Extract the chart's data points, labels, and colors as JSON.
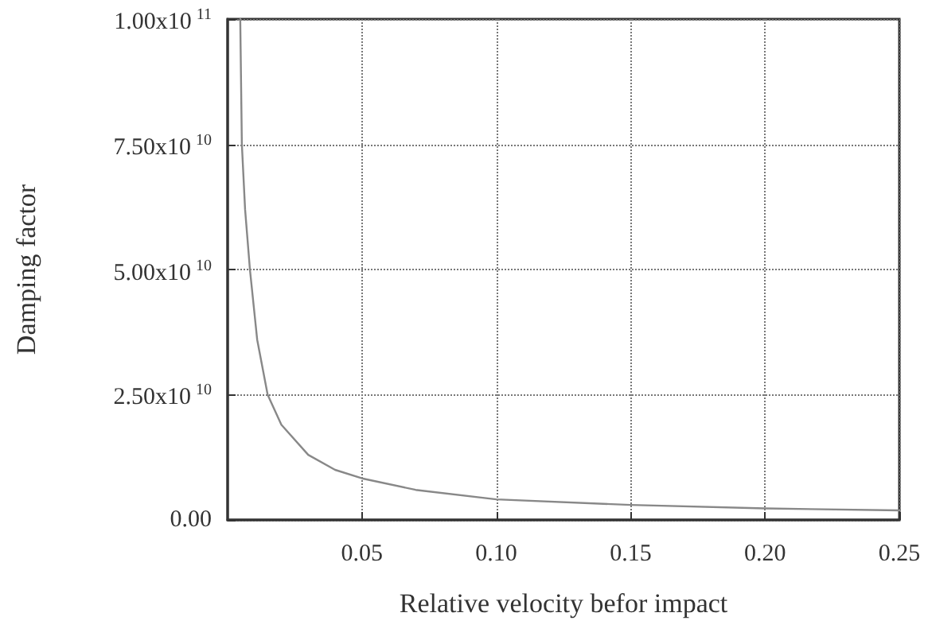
{
  "chart_data": {
    "type": "line",
    "xlabel": "Relative velocity befor impact",
    "ylabel": "Damping factor",
    "x": [
      0.0047,
      0.0053,
      0.0065,
      0.0083,
      0.011,
      0.0149,
      0.02,
      0.03,
      0.04,
      0.05,
      0.07,
      0.1,
      0.15,
      0.2,
      0.25
    ],
    "series": [
      {
        "color": "#888888",
        "values": [
          100000000000.0,
          75000000000.0,
          62000000000.0,
          50000000000.0,
          36000000000.0,
          25000000000.0,
          19000000000.0,
          13000000000.0,
          10000000000.0,
          8300000000.0,
          6000000000.0,
          4100000000.0,
          3000000000.0,
          2300000000.0,
          1900000000.0
        ]
      }
    ],
    "xlim": [
      0,
      0.25
    ],
    "xticks": [
      {
        "value": 0.05,
        "label": "0.05"
      },
      {
        "value": 0.1,
        "label": "0.10"
      },
      {
        "value": 0.15,
        "label": "0.15"
      },
      {
        "value": 0.2,
        "label": "0.20"
      },
      {
        "value": 0.25,
        "label": "0.25"
      }
    ],
    "ylim": [
      0,
      100000000000.0
    ],
    "yticks": [
      {
        "value": 0,
        "label": "0.00"
      },
      {
        "value": 25000000000.0,
        "label": "2.50x10$^{10}$"
      },
      {
        "value": 50000000000.0,
        "label": "5.00x10$^{10}$"
      },
      {
        "value": 75000000000.0,
        "label": "7.50x10$^{10}$"
      },
      {
        "value": 100000000000.0,
        "label": "1.00x10$^{11}$"
      }
    ],
    "grid": true,
    "marker": "none",
    "line_style": "solid"
  }
}
